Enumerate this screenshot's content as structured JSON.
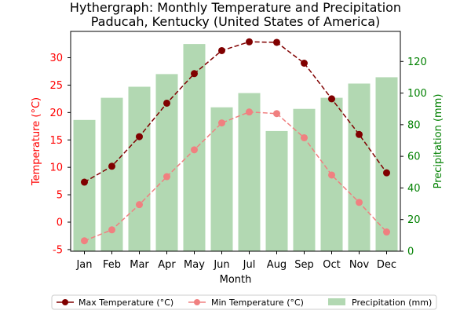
{
  "chart_data": {
    "type": "bar+line",
    "title": "Hythergraph: Monthly Temperature and Precipitation",
    "subtitle": "Paducah, Kentucky (United States of America)",
    "xlabel": "Month",
    "ylabel_left": "Temperature (°C)",
    "ylabel_right": "Precipitation (mm)",
    "categories": [
      "Jan",
      "Feb",
      "Mar",
      "Apr",
      "May",
      "Jun",
      "Jul",
      "Aug",
      "Sep",
      "Oct",
      "Nov",
      "Dec"
    ],
    "ylim_left": [
      -5.3,
      34.8
    ],
    "ylim_right": [
      0,
      139
    ],
    "yticks_left": [
      -5,
      0,
      5,
      10,
      15,
      20,
      25,
      30
    ],
    "yticks_right": [
      0,
      20,
      40,
      60,
      80,
      100,
      120
    ],
    "series": [
      {
        "name": "Max Temperature (°C)",
        "kind": "line",
        "axis": "left",
        "color": "#800000",
        "values": [
          7.3,
          10.2,
          15.6,
          21.7,
          27.1,
          31.3,
          32.9,
          32.8,
          29.0,
          22.5,
          16.0,
          9.0
        ]
      },
      {
        "name": "Min Temperature (°C)",
        "kind": "line",
        "axis": "left",
        "color": "#F08080",
        "values": [
          -3.4,
          -1.4,
          3.2,
          8.3,
          13.2,
          18.1,
          20.1,
          19.8,
          15.4,
          8.6,
          3.6,
          -1.8
        ]
      },
      {
        "name": "Precipitation (mm)",
        "kind": "bar",
        "axis": "right",
        "color": "#B2D8B2",
        "values": [
          83,
          97,
          104,
          112,
          131,
          91,
          100,
          76,
          90,
          97,
          106,
          110
        ]
      }
    ],
    "left_axis_color": "#FF0000",
    "right_axis_color": "#008000",
    "legend_position": "bottom",
    "grid": false
  }
}
